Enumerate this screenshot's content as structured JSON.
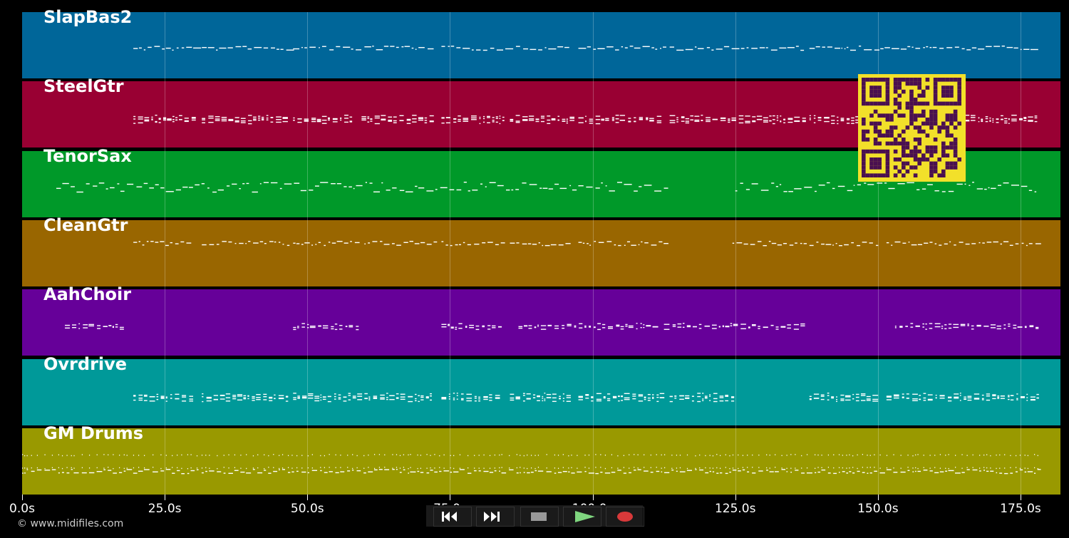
{
  "tracks": [
    {
      "name": "SlapBas2",
      "color": "#006699",
      "pattern": "bass"
    },
    {
      "name": "SteelGtr",
      "color": "#990033",
      "pattern": "chords"
    },
    {
      "name": "TenorSax",
      "color": "#009929",
      "pattern": "melody"
    },
    {
      "name": "CleanGtr",
      "color": "#996600",
      "pattern": "dots"
    },
    {
      "name": "AahChoir",
      "color": "#660099",
      "pattern": "choir"
    },
    {
      "name": "Ovrdrive",
      "color": "#009999",
      "pattern": "chords2"
    },
    {
      "name": "GM Drums",
      "color": "#999900",
      "pattern": "drums"
    }
  ],
  "timeline": {
    "ticks": [
      "0.0s",
      "25.0s",
      "50.0s",
      "75.0s",
      "100.0s",
      "125.0s",
      "150.0s",
      "175.0s"
    ]
  },
  "copyright": "© www.midifiles.com",
  "transport": {
    "buttons": [
      {
        "name": "rewind-icon",
        "color": "#111111"
      },
      {
        "name": "fast-forward-icon",
        "color": "#111111"
      },
      {
        "name": "stop-icon",
        "color": "#333333"
      },
      {
        "name": "play-icon",
        "color": "#2a6a2a"
      },
      {
        "name": "record-icon",
        "color": "#4a1a1a"
      }
    ]
  },
  "qr_code": {
    "color": "#f2e02a",
    "dark": "#4a1050"
  }
}
